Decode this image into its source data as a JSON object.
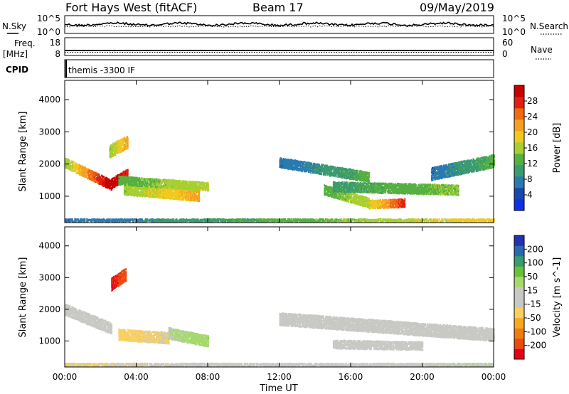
{
  "header": {
    "title": "Fort Hays West (fitACF)",
    "beam": "Beam 17",
    "date": "09/May/2019"
  },
  "top_panels": {
    "nsky_label": "N.Sky",
    "nsearch_label": "N.Search",
    "noise_ticks": [
      "10^5",
      "10^0"
    ],
    "freq_label": "Freq.",
    "freq_unit": "[MHz]",
    "freq_ticks": [
      "18",
      "8"
    ],
    "nave_label": "Nave",
    "nave_ticks": [
      "60",
      "0"
    ],
    "cpid_label": "CPID",
    "cpid_value": "themis -3300 IF"
  },
  "x_axis": {
    "label": "Time UT",
    "ticks": [
      "00:00",
      "04:00",
      "08:00",
      "12:00",
      "16:00",
      "20:00",
      "00:00"
    ]
  },
  "colors": {
    "power_scale": [
      "#1030e8",
      "#1a46b0",
      "#2a7ab0",
      "#3a9a70",
      "#55b040",
      "#a8cf30",
      "#f0c820",
      "#f5a020",
      "#f06a10",
      "#e02010",
      "#c80000"
    ],
    "velocity_scale": [
      "#e8001a",
      "#ec4a10",
      "#f07c10",
      "#f8a820",
      "#f7d060",
      "#c8c8c4",
      "#c8c8c4",
      "#a6d86e",
      "#68c238",
      "#3a9a70",
      "#2a6ab0",
      "#2232b0"
    ]
  },
  "chart_data": [
    {
      "type": "heatmap",
      "name": "power",
      "ylabel": "Slant Range [km]",
      "colorbar_label": "Power [dB]",
      "colorbar_ticks": [
        "4",
        "8",
        "12",
        "16",
        "20",
        "24",
        "28"
      ],
      "xlim": [
        0,
        24
      ],
      "ylim": [
        180,
        4600
      ],
      "yticks": [
        1000,
        2000,
        3000,
        4000
      ],
      "vrange": [
        0,
        30
      ],
      "features": [
        {
          "t": [
            0.0,
            2.6
          ],
          "r0": [
            2050,
            1350
          ],
          "w": 300,
          "v": [
            14,
            30
          ]
        },
        {
          "t": [
            2.6,
            3.5
          ],
          "r0": [
            1400,
            1700
          ],
          "w": 300,
          "v": [
            30,
            26
          ]
        },
        {
          "t": [
            2.5,
            3.5
          ],
          "r0": [
            2400,
            2700
          ],
          "w": 400,
          "v": [
            14,
            20
          ]
        },
        {
          "t": [
            3.3,
            7.5
          ],
          "r0": [
            1250,
            1050
          ],
          "w": 400,
          "v": [
            14,
            20
          ]
        },
        {
          "t": [
            3.0,
            8.0
          ],
          "r0": [
            1500,
            1300
          ],
          "w": 250,
          "v": [
            12,
            16
          ]
        },
        {
          "t": [
            14.5,
            17.0
          ],
          "r0": [
            1200,
            800
          ],
          "w": 300,
          "v": [
            12,
            16
          ]
        },
        {
          "t": [
            17.0,
            19.0
          ],
          "r0": [
            750,
            800
          ],
          "w": 250,
          "v": [
            16,
            26
          ]
        },
        {
          "t": [
            15.0,
            22.0
          ],
          "r0": [
            1300,
            1200
          ],
          "w": 300,
          "v": [
            10,
            14
          ]
        },
        {
          "t": [
            12.0,
            17.0
          ],
          "r0": [
            2050,
            1600
          ],
          "w": 300,
          "v": [
            6,
            12
          ]
        },
        {
          "t": [
            20.5,
            24.0
          ],
          "r0": [
            1700,
            2100
          ],
          "w": 400,
          "v": [
            6,
            12
          ]
        },
        {
          "t": [
            0.0,
            24.0
          ],
          "r0": [
            260,
            260
          ],
          "w": 80,
          "v": [
            6,
            18
          ]
        }
      ]
    },
    {
      "type": "heatmap",
      "name": "velocity",
      "ylabel": "Slant Range [km]",
      "colorbar_label": "Velocity [m s^-1]",
      "colorbar_ticks": [
        "-200",
        "-100",
        "-50",
        "-15",
        "15",
        "50",
        "100",
        "200"
      ],
      "xlim": [
        0,
        24
      ],
      "ylim": [
        180,
        4600
      ],
      "yticks": [
        1000,
        2000,
        3000,
        4000
      ],
      "vrange": [
        -250,
        250
      ],
      "features": [
        {
          "t": [
            0.0,
            2.6
          ],
          "r0": [
            2000,
            1400
          ],
          "w": 350,
          "v": [
            -30,
            10
          ]
        },
        {
          "t": [
            2.6,
            3.4
          ],
          "r0": [
            2800,
            3100
          ],
          "w": 400,
          "v": [
            -220,
            -180
          ]
        },
        {
          "t": [
            3.0,
            5.8
          ],
          "r0": [
            1200,
            1100
          ],
          "w": 350,
          "v": [
            -60,
            -40
          ]
        },
        {
          "t": [
            5.8,
            8.0
          ],
          "r0": [
            1250,
            1000
          ],
          "w": 350,
          "v": [
            40,
            70
          ]
        },
        {
          "t": [
            12.0,
            24.0
          ],
          "r0": [
            1700,
            1200
          ],
          "w": 400,
          "v": [
            -20,
            15
          ]
        },
        {
          "t": [
            15.0,
            20.0
          ],
          "r0": [
            900,
            850
          ],
          "w": 250,
          "v": [
            -20,
            10
          ]
        },
        {
          "t": [
            0.0,
            24.0
          ],
          "r0": [
            260,
            260
          ],
          "w": 80,
          "v": [
            -50,
            40
          ]
        }
      ]
    }
  ]
}
